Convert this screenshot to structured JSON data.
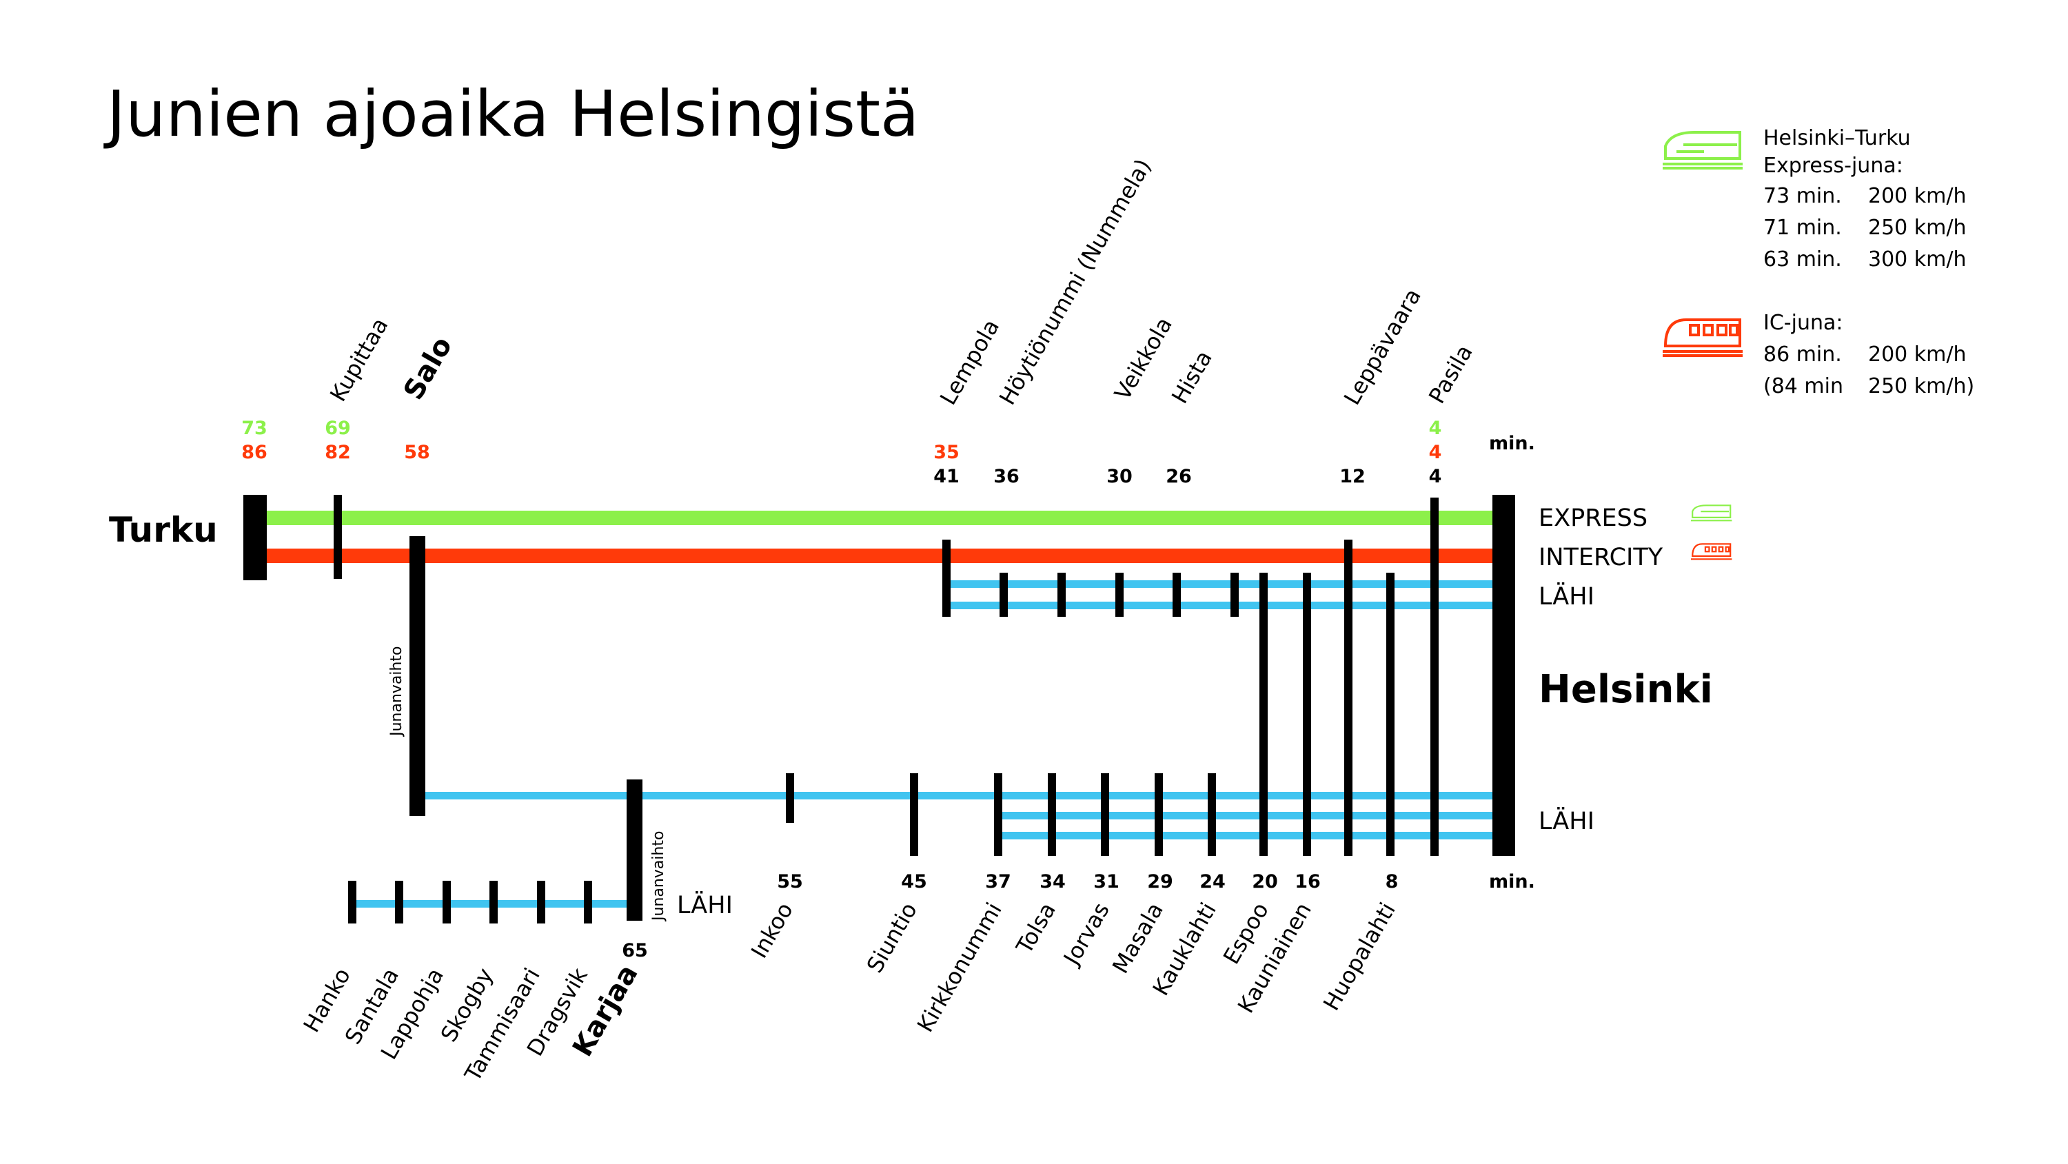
{
  "title": "Junien ajoaika Helsingistä",
  "colors": {
    "express": "#8cf04a",
    "intercity": "#ff3a0a",
    "lahi": "#40c4f0",
    "ink": "#000000"
  },
  "cities": {
    "turku": "Turku",
    "helsinki": "Helsinki"
  },
  "line_labels": {
    "express": "EXPRESS",
    "intercity": "INTERCITY",
    "lahi_upper": "LÄHI",
    "lahi_lower": "LÄHI",
    "lahi_hanko": "LÄHI"
  },
  "min_label_top": "min.",
  "min_label_bottom": "min.",
  "transfer_label": "Junanvaihto",
  "legend": {
    "express": {
      "icon": "express-train-icon",
      "title_line1": "Helsinki–Turku",
      "title_line2": "Express-juna:",
      "rows": [
        [
          "73 min.",
          "200 km/h"
        ],
        [
          "71 min.",
          "250 km/h"
        ],
        [
          "63 min.",
          "300 km/h"
        ]
      ]
    },
    "ic": {
      "icon": "ic-train-icon",
      "title": "IC-juna:",
      "rows": [
        [
          "86 min.",
          "200 km/h"
        ],
        [
          "(84 min",
          "250 km/h)"
        ]
      ]
    }
  },
  "top_stations": [
    {
      "id": "turku",
      "name": "",
      "express": "73",
      "ic": "86",
      "local": ""
    },
    {
      "id": "kupittaa",
      "name": "Kupittaa",
      "express": "69",
      "ic": "82",
      "local": ""
    },
    {
      "id": "salo",
      "name": "Salo",
      "express": "",
      "ic": "58",
      "local": "",
      "bold": true
    },
    {
      "id": "lempola",
      "name": "Lempola",
      "express": "",
      "ic": "35",
      "local": "41"
    },
    {
      "id": "hoytionummi",
      "name": "Höytiönummi (Nummela)",
      "express": "",
      "ic": "",
      "local": "36"
    },
    {
      "id": "vihti",
      "name": "",
      "express": "",
      "ic": "",
      "local": ""
    },
    {
      "id": "veikkola",
      "name": "Veikkola",
      "express": "",
      "ic": "",
      "local": "30"
    },
    {
      "id": "hista",
      "name": "Hista",
      "express": "",
      "ic": "",
      "local": "26"
    },
    {
      "id": "leppavaara",
      "name": "Leppävaara",
      "express": "",
      "ic": "",
      "local": "12"
    },
    {
      "id": "pasila",
      "name": "Pasila",
      "express": "4",
      "ic": "4",
      "local": "4"
    }
  ],
  "bottom_stations": [
    {
      "id": "hanko",
      "name": "Hanko",
      "time": ""
    },
    {
      "id": "santala",
      "name": "Santala",
      "time": ""
    },
    {
      "id": "lappohja",
      "name": "Lappohja",
      "time": ""
    },
    {
      "id": "skogby",
      "name": "Skogby",
      "time": ""
    },
    {
      "id": "tammisaari",
      "name": "Tammisaari",
      "time": ""
    },
    {
      "id": "dragsvik",
      "name": "Dragsvik",
      "time": ""
    },
    {
      "id": "karjaa",
      "name": "Karjaa",
      "time": "65",
      "bold": true
    },
    {
      "id": "inkoo",
      "name": "Inkoo",
      "time": "55"
    },
    {
      "id": "siuntio",
      "name": "Siuntio",
      "time": "45"
    },
    {
      "id": "kirkkonummi",
      "name": "Kirkkonummi",
      "time": "37"
    },
    {
      "id": "tolsa",
      "name": "Tolsa",
      "time": "34"
    },
    {
      "id": "jorvas",
      "name": "Jorvas",
      "time": "31"
    },
    {
      "id": "masala",
      "name": "Masala",
      "time": "29"
    },
    {
      "id": "kauklahti",
      "name": "Kauklahti",
      "time": "24"
    },
    {
      "id": "espoo",
      "name": "Espoo",
      "time": "20"
    },
    {
      "id": "kauniainen",
      "name": "Kauniainen",
      "time": "16"
    },
    {
      "id": "huopalahti",
      "name": "Huopalahti",
      "time": "8"
    }
  ]
}
